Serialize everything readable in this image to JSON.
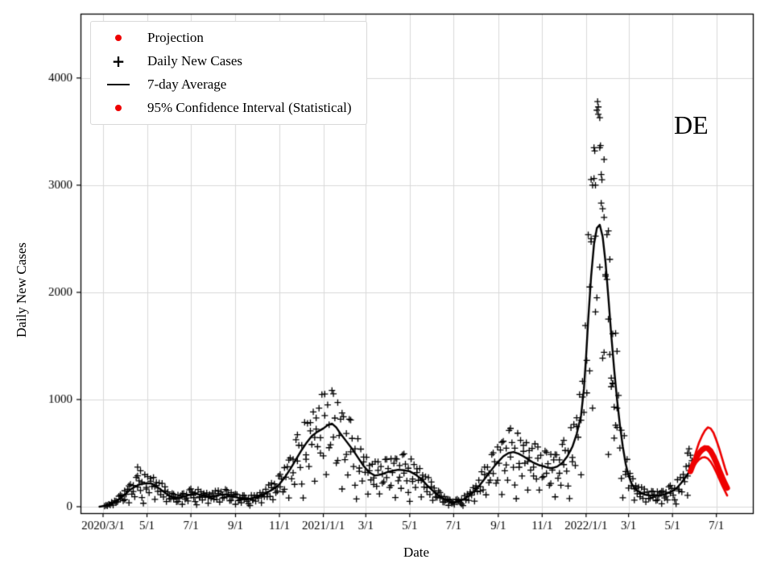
{
  "figure": {
    "region_label": "DE",
    "xlabel": "Date",
    "ylabel": "Daily New Cases"
  },
  "legend": {
    "items": [
      {
        "marker": "red-dot",
        "label": "Projection"
      },
      {
        "marker": "black-plus",
        "label": "Daily New Cases"
      },
      {
        "marker": "black-line",
        "label": "7-day Average"
      },
      {
        "marker": "red-dot",
        "label": "95% Confidence Interval (Statistical)"
      }
    ]
  },
  "chart_data": {
    "type": "line+scatter",
    "title": "",
    "x_axis": {
      "label": "Date",
      "origin_date": "2020/3/1",
      "tick_days": [
        0,
        61,
        122,
        184,
        245,
        306,
        365,
        426,
        487,
        549,
        610,
        671,
        730,
        791,
        852
      ],
      "tick_labels": [
        "2020/3/1",
        "5/1",
        "7/1",
        "9/1",
        "11/1",
        "2021/1/1",
        "3/1",
        "5/1",
        "7/1",
        "9/1",
        "11/1",
        "2022/1/1",
        "3/1",
        "5/1",
        "7/1"
      ],
      "range_days": [
        -31,
        903
      ]
    },
    "y_axis": {
      "label": "Daily New Cases",
      "ticks": [
        0,
        1000,
        2000,
        3000,
        4000
      ],
      "tick_labels": [
        "0",
        "1000",
        "2000",
        "3000",
        "4000"
      ],
      "range": [
        -60,
        4600
      ]
    },
    "grid": true,
    "legend_position": "upper-left",
    "series": {
      "avg7": [
        [
          -5,
          0
        ],
        [
          0,
          5
        ],
        [
          8,
          15
        ],
        [
          15,
          40
        ],
        [
          22,
          70
        ],
        [
          30,
          110
        ],
        [
          38,
          160
        ],
        [
          45,
          190
        ],
        [
          52,
          210
        ],
        [
          61,
          220
        ],
        [
          68,
          215
        ],
        [
          75,
          185
        ],
        [
          82,
          150
        ],
        [
          90,
          110
        ],
        [
          97,
          85
        ],
        [
          105,
          80
        ],
        [
          112,
          95
        ],
        [
          122,
          115
        ],
        [
          130,
          120
        ],
        [
          138,
          105
        ],
        [
          146,
          95
        ],
        [
          155,
          100
        ],
        [
          163,
          110
        ],
        [
          170,
          115
        ],
        [
          177,
          100
        ],
        [
          184,
          90
        ],
        [
          192,
          75
        ],
        [
          200,
          70
        ],
        [
          208,
          80
        ],
        [
          215,
          90
        ],
        [
          222,
          110
        ],
        [
          230,
          140
        ],
        [
          238,
          170
        ],
        [
          245,
          210
        ],
        [
          252,
          270
        ],
        [
          260,
          350
        ],
        [
          268,
          440
        ],
        [
          275,
          520
        ],
        [
          283,
          600
        ],
        [
          290,
          660
        ],
        [
          298,
          700
        ],
        [
          306,
          730
        ],
        [
          312,
          760
        ],
        [
          318,
          775
        ],
        [
          324,
          740
        ],
        [
          330,
          680
        ],
        [
          338,
          610
        ],
        [
          346,
          540
        ],
        [
          354,
          460
        ],
        [
          362,
          380
        ],
        [
          370,
          320
        ],
        [
          378,
          290
        ],
        [
          386,
          300
        ],
        [
          394,
          320
        ],
        [
          402,
          335
        ],
        [
          410,
          345
        ],
        [
          418,
          340
        ],
        [
          426,
          330
        ],
        [
          434,
          300
        ],
        [
          442,
          260
        ],
        [
          450,
          200
        ],
        [
          458,
          150
        ],
        [
          466,
          105
        ],
        [
          474,
          70
        ],
        [
          481,
          50
        ],
        [
          487,
          42
        ],
        [
          494,
          50
        ],
        [
          501,
          70
        ],
        [
          508,
          100
        ],
        [
          515,
          140
        ],
        [
          522,
          190
        ],
        [
          530,
          260
        ],
        [
          538,
          330
        ],
        [
          545,
          390
        ],
        [
          549,
          420
        ],
        [
          556,
          470
        ],
        [
          563,
          500
        ],
        [
          570,
          510
        ],
        [
          577,
          495
        ],
        [
          584,
          470
        ],
        [
          591,
          440
        ],
        [
          598,
          410
        ],
        [
          605,
          390
        ],
        [
          610,
          380
        ],
        [
          617,
          365
        ],
        [
          624,
          360
        ],
        [
          631,
          375
        ],
        [
          638,
          410
        ],
        [
          645,
          470
        ],
        [
          652,
          560
        ],
        [
          658,
          680
        ],
        [
          664,
          850
        ],
        [
          668,
          1100
        ],
        [
          671,
          1400
        ],
        [
          674,
          1750
        ],
        [
          678,
          2150
        ],
        [
          682,
          2450
        ],
        [
          686,
          2600
        ],
        [
          690,
          2630
        ],
        [
          694,
          2520
        ],
        [
          698,
          2280
        ],
        [
          702,
          1950
        ],
        [
          706,
          1600
        ],
        [
          710,
          1280
        ],
        [
          714,
          1000
        ],
        [
          718,
          760
        ],
        [
          722,
          560
        ],
        [
          726,
          400
        ],
        [
          730,
          290
        ],
        [
          734,
          220
        ],
        [
          738,
          175
        ],
        [
          743,
          145
        ],
        [
          748,
          125
        ],
        [
          754,
          112
        ],
        [
          760,
          105
        ],
        [
          766,
          102
        ],
        [
          772,
          105
        ],
        [
          778,
          112
        ],
        [
          784,
          125
        ],
        [
          791,
          145
        ],
        [
          797,
          175
        ],
        [
          803,
          220
        ],
        [
          809,
          275
        ],
        [
          815,
          330
        ]
      ],
      "projection_mid": [
        [
          816,
          330
        ],
        [
          820,
          400
        ],
        [
          824,
          455
        ],
        [
          828,
          500
        ],
        [
          832,
          530
        ],
        [
          836,
          548
        ],
        [
          840,
          545
        ],
        [
          844,
          520
        ],
        [
          848,
          470
        ],
        [
          852,
          410
        ],
        [
          856,
          340
        ],
        [
          860,
          275
        ],
        [
          864,
          215
        ],
        [
          867,
          175
        ]
      ],
      "ci_upper": [
        [
          816,
          340
        ],
        [
          820,
          430
        ],
        [
          824,
          520
        ],
        [
          828,
          600
        ],
        [
          832,
          660
        ],
        [
          836,
          710
        ],
        [
          840,
          740
        ],
        [
          844,
          730
        ],
        [
          848,
          690
        ],
        [
          852,
          620
        ],
        [
          856,
          540
        ],
        [
          860,
          450
        ],
        [
          864,
          360
        ],
        [
          867,
          300
        ]
      ],
      "ci_lower": [
        [
          816,
          320
        ],
        [
          820,
          370
        ],
        [
          824,
          410
        ],
        [
          828,
          440
        ],
        [
          832,
          458
        ],
        [
          836,
          462
        ],
        [
          840,
          450
        ],
        [
          844,
          420
        ],
        [
          848,
          375
        ],
        [
          852,
          320
        ],
        [
          856,
          260
        ],
        [
          860,
          200
        ],
        [
          864,
          145
        ],
        [
          867,
          105
        ]
      ]
    },
    "scatter": {
      "marker": "plus",
      "start_day": 2,
      "end_day": 814,
      "step_days": 2,
      "residual_cycle": [
        0.05,
        -0.2,
        0.3,
        -0.1,
        0.45,
        -0.35,
        0.15,
        -0.6,
        0.25,
        0.0,
        -0.25,
        0.4,
        -0.15,
        0.1,
        -0.45,
        0.35,
        -0.05,
        0.2,
        -0.75,
        0.3,
        -0.3,
        0.12,
        -0.5,
        0.42,
        -0.08,
        0.18,
        -0.28,
        0.08,
        -0.85,
        0.38,
        -0.18,
        0.28,
        -0.4,
        0.22,
        -0.12,
        0.32,
        -0.65
      ],
      "extra_points": [
        [
          48,
          370
        ],
        [
          52,
          335
        ],
        [
          676,
          2050
        ],
        [
          678,
          2500
        ],
        [
          680,
          3000
        ],
        [
          682,
          3350
        ],
        [
          683,
          3320
        ],
        [
          684,
          3000
        ],
        [
          686,
          3700
        ],
        [
          687,
          3780
        ],
        [
          688,
          3730
        ],
        [
          690,
          3350
        ],
        [
          691,
          3370
        ],
        [
          692,
          3100
        ],
        [
          693,
          3050
        ],
        [
          694,
          2780
        ],
        [
          696,
          2700
        ],
        [
          698,
          2150
        ],
        [
          700,
          2120
        ],
        [
          702,
          1750
        ],
        [
          704,
          1420
        ],
        [
          706,
          1200
        ],
        [
          708,
          1150
        ],
        [
          710,
          930
        ],
        [
          712,
          760
        ],
        [
          714,
          740
        ],
        [
          812,
          500
        ],
        [
          814,
          540
        ],
        [
          816,
          480
        ],
        [
          818,
          430
        ]
      ]
    },
    "colors": {
      "line": "#000000",
      "scatter": "#000000",
      "projection": "#ee0000",
      "grid": "#d9d9d9",
      "axis": "#000000",
      "background": "#ffffff"
    }
  }
}
